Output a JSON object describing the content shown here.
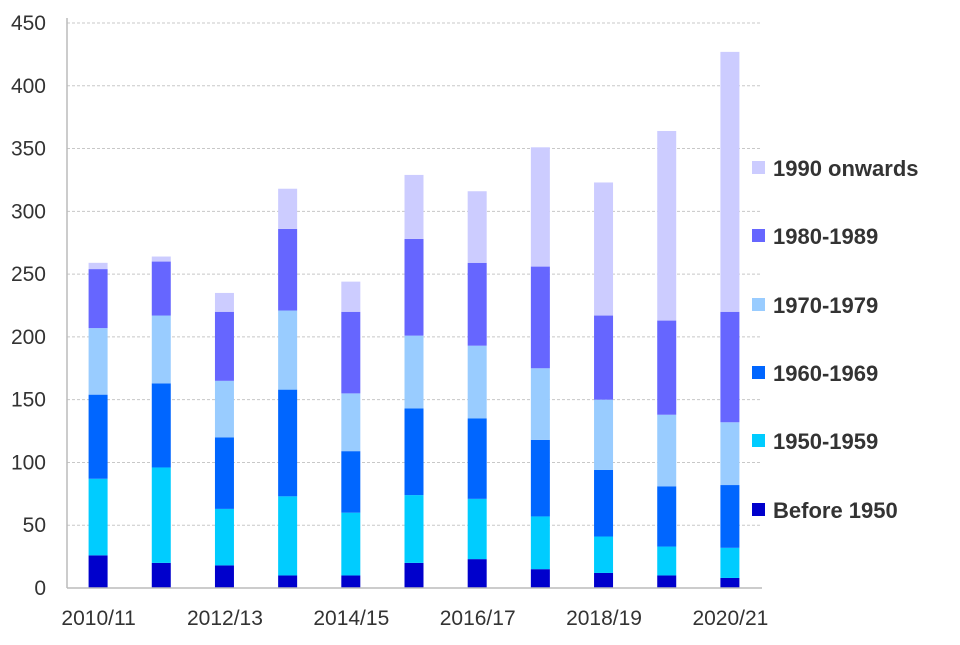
{
  "chart_data": {
    "type": "bar",
    "stacked": true,
    "title": "",
    "xlabel": "",
    "ylabel": "",
    "ylim": [
      0,
      450
    ],
    "y_ticks": [
      0,
      50,
      100,
      150,
      200,
      250,
      300,
      350,
      400,
      450
    ],
    "x_tick_labels": [
      "2010/11",
      "2012/13",
      "2014/15",
      "2016/17",
      "2018/19",
      "2020/21"
    ],
    "bar_count": 11,
    "grid": true,
    "legend_position": "right",
    "series": [
      {
        "name": "Before 1950",
        "color": "#0000CC",
        "values": [
          26,
          20,
          18,
          10,
          10,
          20,
          23,
          15,
          12,
          10,
          8
        ]
      },
      {
        "name": "1950-1959",
        "color": "#00CCFF",
        "values": [
          61,
          76,
          45,
          63,
          50,
          54,
          48,
          42,
          29,
          23,
          24
        ]
      },
      {
        "name": "1960-1969",
        "color": "#0066FF",
        "values": [
          67,
          67,
          57,
          85,
          49,
          69,
          64,
          61,
          53,
          48,
          50
        ]
      },
      {
        "name": "1970-1979",
        "color": "#99CCFF",
        "values": [
          53,
          54,
          45,
          63,
          46,
          58,
          58,
          57,
          56,
          57,
          50
        ]
      },
      {
        "name": "1980-1989",
        "color": "#6666FF",
        "values": [
          47,
          43,
          55,
          65,
          65,
          77,
          66,
          81,
          67,
          75,
          88
        ]
      },
      {
        "name": "1990 onwards",
        "color": "#CCCCFF",
        "values": [
          5,
          4,
          15,
          32,
          24,
          51,
          57,
          95,
          106,
          151,
          207
        ]
      }
    ]
  }
}
